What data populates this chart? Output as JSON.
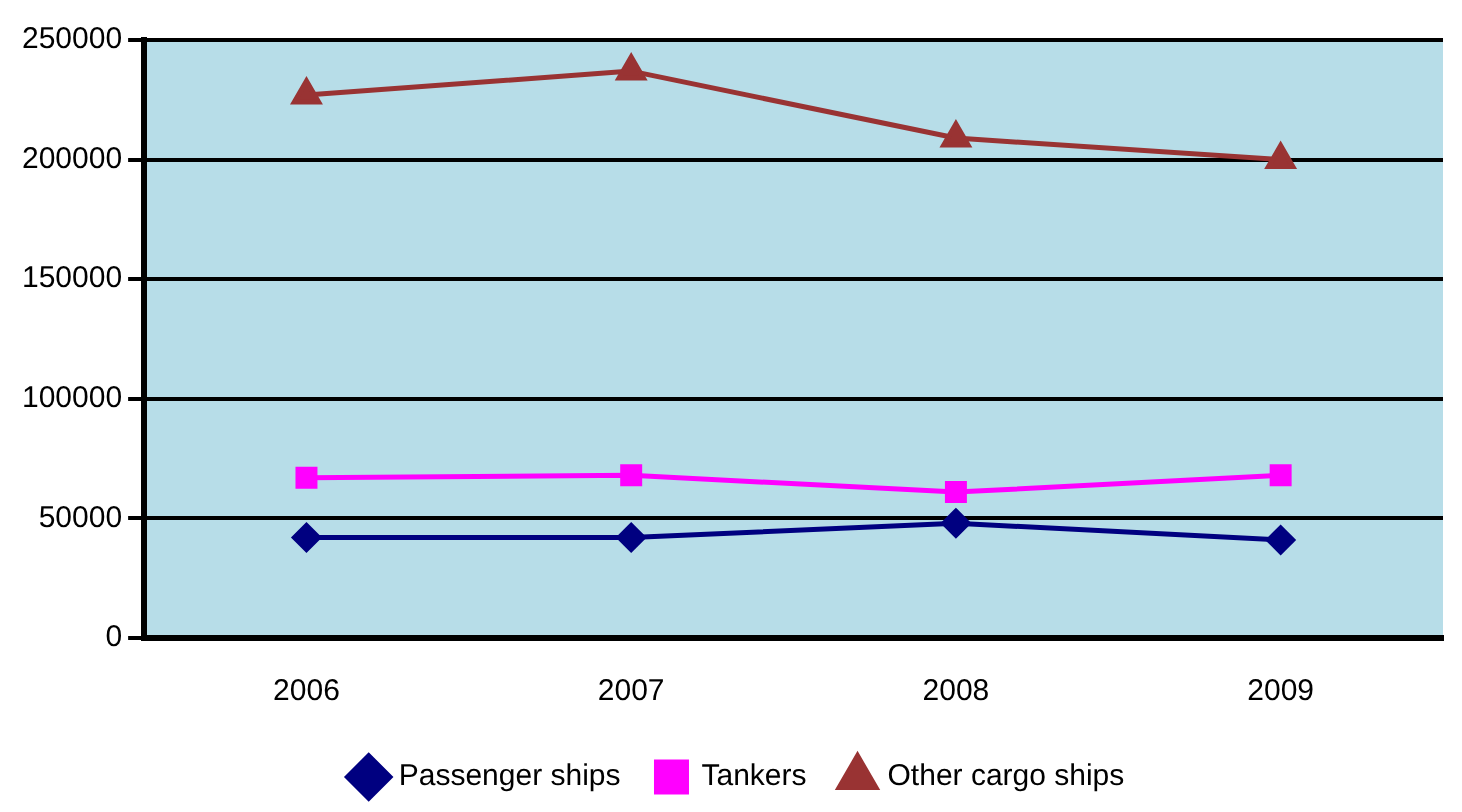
{
  "chart_data": {
    "type": "line",
    "categories": [
      "2006",
      "2007",
      "2008",
      "2009"
    ],
    "series": [
      {
        "name": "Passenger ships",
        "color": "#000080",
        "marker": "diamond",
        "values": [
          42000,
          42000,
          48000,
          41000
        ]
      },
      {
        "name": "Tankers",
        "color": "#ff00ff",
        "marker": "square",
        "values": [
          67000,
          68000,
          61000,
          68000
        ]
      },
      {
        "name": "Other cargo ships",
        "color": "#993333",
        "marker": "triangle",
        "values": [
          227000,
          237000,
          209000,
          200000
        ]
      }
    ],
    "ylim": [
      0,
      250000
    ],
    "yticks": [
      0,
      50000,
      100000,
      150000,
      200000,
      250000
    ],
    "grid": "y",
    "legend": "bottom"
  }
}
